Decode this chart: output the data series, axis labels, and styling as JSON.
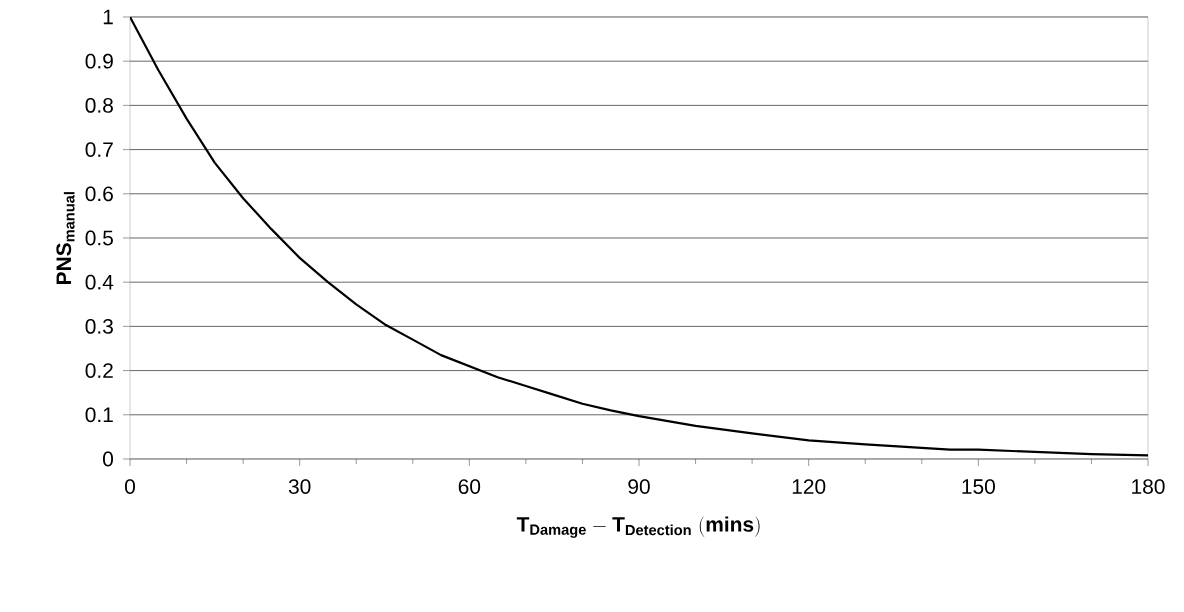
{
  "chart_data": {
    "type": "line",
    "xlabel": "\\mathbf{T_{Damage} - T_{Detection}\\ (mins)}",
    "ylabel": "PNS$_{manual}$",
    "x": [
      0,
      5,
      10,
      15,
      20,
      25,
      30,
      35,
      40,
      45,
      50,
      55,
      60,
      65,
      70,
      75,
      80,
      85,
      90,
      100,
      110,
      120,
      130,
      145,
      150,
      160,
      170,
      180
    ],
    "series": [
      {
        "color": "#000000",
        "values": [
          1.0,
          0.88,
          0.77,
          0.67,
          0.59,
          0.52,
          0.455,
          0.4,
          0.35,
          0.305,
          0.27,
          0.235,
          0.21,
          0.185,
          0.165,
          0.145,
          0.125,
          0.11,
          0.097,
          0.075,
          0.058,
          0.042,
          0.033,
          0.021,
          0.021,
          0.016,
          0.011,
          0.008
        ]
      }
    ],
    "xlim": [
      0,
      180
    ],
    "ylim": [
      0,
      1
    ],
    "xticks": [
      0,
      30,
      60,
      90,
      120,
      150,
      180
    ],
    "yticks": [
      0,
      0.1,
      0.2,
      0.3,
      0.4,
      0.5,
      0.6,
      0.7,
      0.8,
      0.9,
      1
    ],
    "grid": "y",
    "marker": "none",
    "line_style": "solid"
  }
}
